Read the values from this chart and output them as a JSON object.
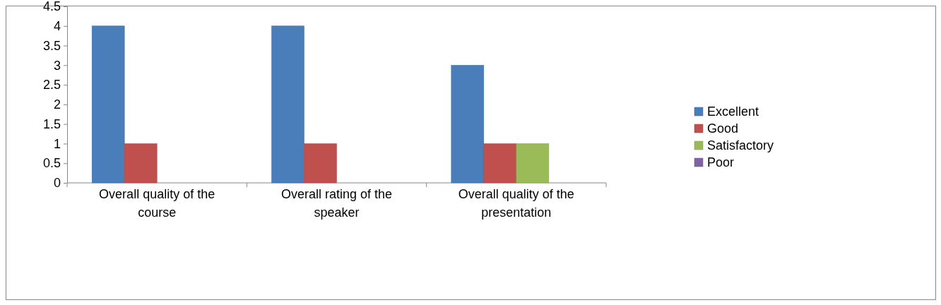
{
  "chart_data": {
    "type": "bar",
    "categories": [
      "Overall quality of the course",
      "Overall rating of the speaker",
      "Overall quality of the presentation"
    ],
    "series": [
      {
        "name": "Excellent",
        "color": "#4a7ebb",
        "values": [
          4,
          4,
          3
        ]
      },
      {
        "name": "Good",
        "color": "#c0504d",
        "values": [
          1,
          1,
          1
        ]
      },
      {
        "name": "Satisfactory",
        "color": "#9bbb59",
        "values": [
          0,
          0,
          1
        ]
      },
      {
        "name": "Poor",
        "color": "#8064a2",
        "values": [
          0,
          0,
          0
        ]
      }
    ],
    "ylim": [
      0,
      4.5
    ],
    "yticks": [
      0,
      0.5,
      1,
      1.5,
      2,
      2.5,
      3,
      3.5,
      4,
      4.5
    ],
    "grid": false,
    "legend": "right"
  }
}
